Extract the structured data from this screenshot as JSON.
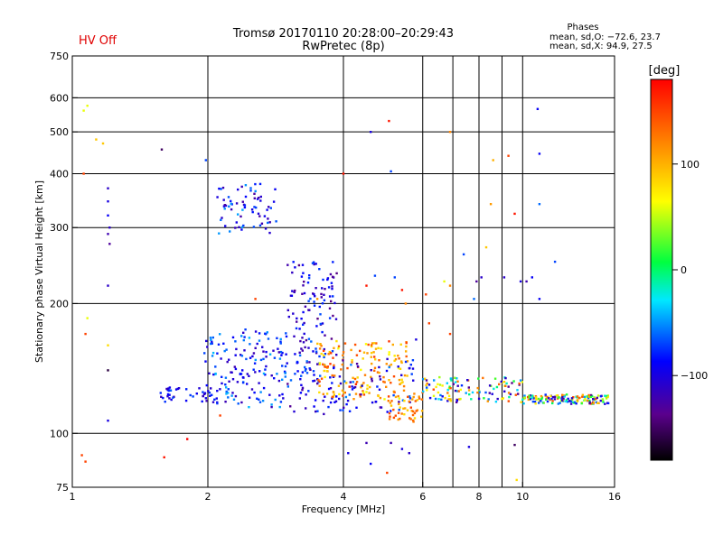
{
  "header": {
    "status": "HV Off",
    "title_line1": "Tromsø 20170110 20:28:00–20:29:43",
    "title_line2": "RwPretec (8p)",
    "phases_title": "Phases",
    "phases_o": "mean, sd,O: −72.6, 23.7",
    "phases_x": "mean, sd,X:  94.9, 27.5"
  },
  "colorbar": {
    "unit": "[deg]",
    "ticks": [
      {
        "value": 100,
        "label": "100"
      },
      {
        "value": 0,
        "label": "0"
      },
      {
        "value": -100,
        "label": "−100"
      }
    ],
    "range": [
      -180,
      180
    ]
  },
  "chart_data": {
    "type": "scatter",
    "title": "Tromsø 20170110 20:28:00–20:29:43",
    "subtitle": "RwPretec (8p)",
    "xlabel": "Frequency [MHz]",
    "ylabel": "Stationary phase Virtual Height [km]",
    "x_scale": "log",
    "y_scale": "log",
    "xlim": [
      1,
      16
    ],
    "ylim": [
      75,
      750
    ],
    "grid": true,
    "xticks": [
      {
        "value": 1,
        "label": "1"
      },
      {
        "value": 2,
        "label": "2"
      },
      {
        "value": 4,
        "label": "4"
      },
      {
        "value": 6,
        "label": "6"
      },
      {
        "value": 8,
        "label": "8"
      },
      {
        "value": 10,
        "label": "10"
      },
      {
        "value": 16,
        "label": "16"
      }
    ],
    "xgrid": [
      2,
      4,
      6,
      7,
      8,
      9,
      10
    ],
    "yticks": [
      {
        "value": 75,
        "label": "75"
      },
      {
        "value": 100,
        "label": "100"
      },
      {
        "value": 200,
        "label": "200"
      },
      {
        "value": 300,
        "label": "300"
      },
      {
        "value": 400,
        "label": "400"
      },
      {
        "value": 500,
        "label": "500"
      },
      {
        "value": 600,
        "label": "600"
      },
      {
        "value": 750,
        "label": "750"
      }
    ],
    "ygrid": [
      100,
      200,
      300,
      400,
      500,
      600
    ],
    "color_variable": "phase [deg]",
    "points": [
      [
        1.08,
        575,
        60
      ],
      [
        1.06,
        560,
        60
      ],
      [
        1.06,
        400,
        150
      ],
      [
        1.17,
        470,
        90
      ],
      [
        1.13,
        480,
        90
      ],
      [
        1.2,
        370,
        -110
      ],
      [
        1.2,
        345,
        -100
      ],
      [
        1.2,
        320,
        -90
      ],
      [
        1.21,
        300,
        -110
      ],
      [
        1.2,
        290,
        -120
      ],
      [
        1.21,
        275,
        -130
      ],
      [
        1.2,
        220,
        -110
      ],
      [
        1.08,
        185,
        60
      ],
      [
        1.07,
        170,
        150
      ],
      [
        1.2,
        160,
        80
      ],
      [
        1.2,
        140,
        -160
      ],
      [
        1.2,
        107,
        -100
      ],
      [
        1.05,
        89,
        150
      ],
      [
        1.07,
        86,
        150
      ],
      [
        1.58,
        455,
        -150
      ],
      [
        1.6,
        88,
        170
      ],
      [
        1.8,
        97,
        180
      ],
      [
        1.98,
        430,
        -70
      ],
      [
        2.13,
        110,
        150
      ],
      [
        4.0,
        400,
        170
      ],
      [
        4.6,
        500,
        -100
      ],
      [
        5.05,
        530,
        170
      ],
      [
        5.1,
        405,
        -70
      ],
      [
        6.9,
        500,
        120
      ],
      [
        8.6,
        430,
        100
      ],
      [
        9.3,
        440,
        150
      ],
      [
        9.6,
        323,
        170
      ],
      [
        8.5,
        340,
        110
      ],
      [
        10.8,
        565,
        -90
      ],
      [
        10.9,
        445,
        -90
      ],
      [
        10.9,
        340,
        -60
      ],
      [
        11.8,
        250,
        -70
      ],
      [
        8.3,
        270,
        90
      ],
      [
        7.4,
        260,
        -70
      ],
      [
        7.9,
        225,
        -130
      ],
      [
        8.1,
        230,
        -110
      ],
      [
        9.1,
        230,
        -110
      ],
      [
        6.7,
        225,
        60
      ],
      [
        6.9,
        220,
        120
      ],
      [
        10.2,
        225,
        -120
      ],
      [
        10.5,
        230,
        -90
      ],
      [
        10.9,
        205,
        -90
      ],
      [
        6.1,
        210,
        150
      ],
      [
        9.9,
        225,
        -100
      ],
      [
        7.8,
        205,
        -60
      ],
      [
        5.2,
        230,
        -70
      ],
      [
        4.7,
        232,
        -70
      ],
      [
        4.5,
        220,
        170
      ],
      [
        5.4,
        215,
        170
      ],
      [
        5.5,
        200,
        120
      ],
      [
        5.8,
        165,
        -100
      ],
      [
        3.5,
        205,
        110
      ],
      [
        2.55,
        205,
        150
      ],
      [
        4.1,
        90,
        -100
      ],
      [
        4.6,
        85,
        -90
      ],
      [
        5.0,
        81,
        150
      ],
      [
        9.7,
        78,
        80
      ],
      [
        9.6,
        94,
        -150
      ],
      [
        7.6,
        93,
        -100
      ],
      [
        5.1,
        95,
        -120
      ],
      [
        5.4,
        92,
        -100
      ],
      [
        5.6,
        90,
        -110
      ],
      [
        4.5,
        95,
        -120
      ],
      [
        6.9,
        170,
        150
      ],
      [
        6.2,
        180,
        150
      ]
    ],
    "clusters": [
      {
        "x": [
          1.55,
          2.1
        ],
        "y": [
          118,
          128
        ],
        "phase": [
          -120,
          -60
        ],
        "n": 40
      },
      {
        "x": [
          1.95,
          3.0
        ],
        "y": [
          115,
          175
        ],
        "phase": [
          -120,
          -40
        ],
        "n": 160
      },
      {
        "x": [
          2.1,
          2.85
        ],
        "y": [
          290,
          380
        ],
        "phase": [
          -130,
          -40
        ],
        "n": 70
      },
      {
        "x": [
          3.0,
          3.9
        ],
        "y": [
          110,
          250
        ],
        "phase": [
          -140,
          -60
        ],
        "n": 170
      },
      {
        "x": [
          3.5,
          5.6
        ],
        "y": [
          120,
          165
        ],
        "phase": [
          60,
          160
        ],
        "n": 160
      },
      {
        "x": [
          3.9,
          5.8
        ],
        "y": [
          112,
          150
        ],
        "phase": [
          -130,
          -50
        ],
        "n": 60
      },
      {
        "x": [
          5.0,
          6.0
        ],
        "y": [
          106,
          125
        ],
        "phase": [
          80,
          150
        ],
        "n": 50
      },
      {
        "x": [
          6.0,
          10.0
        ],
        "y": [
          118,
          135
        ],
        "phase": [
          -140,
          150
        ],
        "n": 110
      },
      {
        "x": [
          10.0,
          15.5
        ],
        "y": [
          117,
          123
        ],
        "phase": [
          -140,
          150
        ],
        "n": 150
      }
    ]
  }
}
